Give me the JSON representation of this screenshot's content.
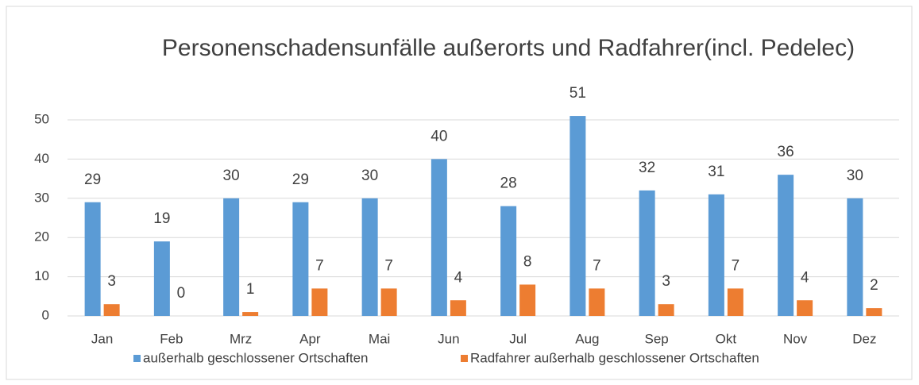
{
  "chart_data": {
    "type": "bar",
    "title": "Personenschadensunfälle außerorts und Radfahrer(incl. Pedelec)",
    "categories": [
      "Jan",
      "Feb",
      "Mrz",
      "Apr",
      "Mai",
      "Jun",
      "Jul",
      "Aug",
      "Sep",
      "Okt",
      "Nov",
      "Dez"
    ],
    "series": [
      {
        "name": "außerhalb geschlossener Ortschaften",
        "color": "#5b9bd5",
        "values": [
          29,
          19,
          30,
          29,
          30,
          40,
          28,
          51,
          32,
          31,
          36,
          30
        ]
      },
      {
        "name": "Radfahrer außerhalb geschlossener Ortschaften",
        "color": "#ed7d31",
        "values": [
          3,
          0,
          1,
          7,
          7,
          4,
          8,
          7,
          3,
          7,
          4,
          2
        ]
      }
    ],
    "ylim": [
      0,
      50
    ],
    "yticks": [
      0,
      10,
      20,
      30,
      40,
      50
    ],
    "grid": true,
    "legend": "bottom"
  }
}
